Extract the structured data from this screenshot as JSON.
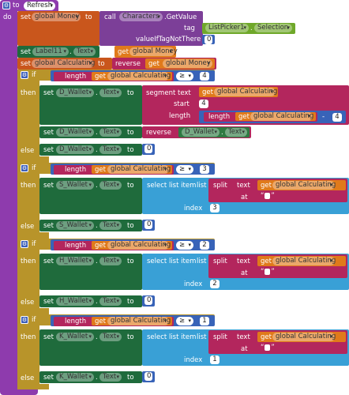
{
  "proc": {
    "to_kw": "to",
    "name": "Refresh",
    "do_kw": "do"
  },
  "kw": {
    "set": "set",
    "to": "to",
    "get": "get",
    "if": "if",
    "then": "then",
    "else": "else",
    "call": "call",
    "tag": "tag",
    "value_if_tag_not_there": "valueIfTagNotThere",
    "length": "length",
    "reverse": "reverse",
    "segment_text": "segment text",
    "start": "start",
    "length_param": "length",
    "select_list_item": "select list item",
    "list": "list",
    "index": "index",
    "split": "split",
    "text_param": "text",
    "at": "at",
    "dot": "."
  },
  "vars": {
    "money": "global Money",
    "calculating": "global Calculating"
  },
  "components": {
    "characters": "Characters",
    "get_value": ".GetValue",
    "list_picker": "ListPicker1",
    "selection": "Selection",
    "label11": "Label11",
    "text_prop": "Text",
    "d_wallet": "D_Wallet",
    "s_wallet": "S_Wallet",
    "h_wallet": "H_Wallet",
    "k_wallet": "K_Wallet"
  },
  "ops": {
    "gte": "≥",
    "minus": "-"
  },
  "numbers": {
    "zero": "0",
    "one": "1",
    "two": "2",
    "three": "3",
    "four": "4"
  },
  "colors": {
    "procedure": "#8e3bad",
    "control": "#b8942a",
    "component_setter": "#1f6b3c",
    "variable_setter": "#c9561c",
    "variable_getter": "#e07a1b",
    "math": "#3863b8",
    "text": "#b3265d",
    "list": "#39a0d6"
  },
  "icons": {
    "gear": "gear-icon",
    "dropdown": "chevron-down-icon"
  }
}
